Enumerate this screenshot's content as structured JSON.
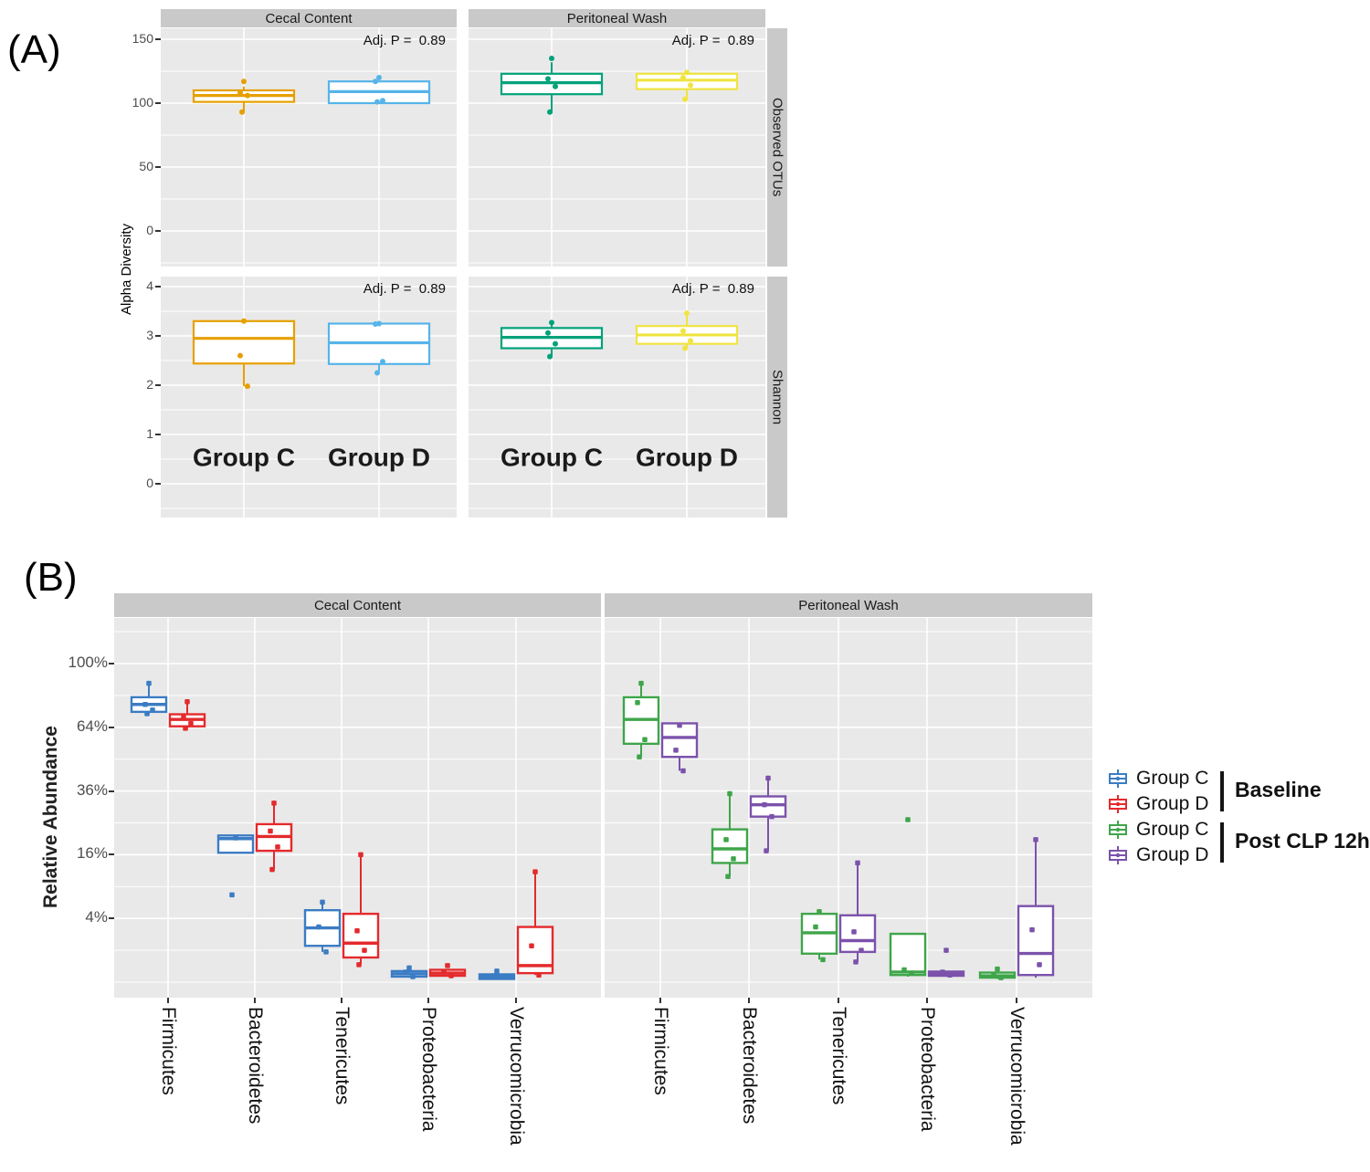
{
  "chart_data": {
    "type": "boxplot",
    "figure": {
      "panel_a_label": "(A)",
      "panel_b_label": "(B)"
    },
    "panel_a": {
      "ylabel": "Alpha Diversity",
      "facet_cols": [
        "Cecal Content",
        "Peritoneal Wash"
      ],
      "facet_rows": [
        "Observed OTUs",
        "Shannon"
      ],
      "annotation": "Adj. P =  0.89",
      "groups": [
        "Group C",
        "Group D"
      ],
      "rows": [
        {
          "name": "Observed OTUs",
          "yticks": [
            150,
            100,
            50,
            0
          ],
          "ylim": [
            -28,
            158
          ]
        },
        {
          "name": "Shannon",
          "yticks": [
            4,
            3,
            2,
            1,
            0
          ],
          "ylim": [
            -0.7,
            4.2
          ]
        }
      ],
      "cells": [
        {
          "row": 0,
          "col": 0,
          "boxes": [
            {
              "group": "Group C",
              "color": "#E69F00",
              "lo": 93,
              "q1": 101,
              "med": 106,
              "q3": 110,
              "hi": 113,
              "points": [
                117,
                108,
                106,
                93
              ]
            },
            {
              "group": "Group D",
              "color": "#56B4E9",
              "lo": 100,
              "q1": 100,
              "med": 109,
              "q3": 117,
              "hi": 117,
              "points": [
                120,
                117,
                102,
                101
              ]
            }
          ]
        },
        {
          "row": 0,
          "col": 1,
          "boxes": [
            {
              "group": "Group C",
              "color": "#00A27A",
              "lo": 92,
              "q1": 107,
              "med": 116,
              "q3": 123,
              "hi": 132,
              "points": [
                135,
                119,
                113,
                93
              ]
            },
            {
              "group": "Group D",
              "color": "#F0E442",
              "lo": 102,
              "q1": 111,
              "med": 118,
              "q3": 123,
              "hi": 123,
              "points": [
                124,
                120,
                114,
                103
              ]
            }
          ]
        },
        {
          "row": 1,
          "col": 0,
          "boxes": [
            {
              "group": "Group C",
              "color": "#E69F00",
              "lo": 1.98,
              "q1": 2.44,
              "med": 2.95,
              "q3": 3.3,
              "hi": 3.3,
              "points": [
                3.3,
                2.6,
                1.98
              ]
            },
            {
              "group": "Group D",
              "color": "#56B4E9",
              "lo": 2.28,
              "q1": 2.43,
              "med": 2.86,
              "q3": 3.25,
              "hi": 3.25,
              "points": [
                3.25,
                3.24,
                2.48,
                2.25
              ]
            }
          ]
        },
        {
          "row": 1,
          "col": 1,
          "boxes": [
            {
              "group": "Group C",
              "color": "#00A27A",
              "lo": 2.58,
              "q1": 2.75,
              "med": 2.97,
              "q3": 3.16,
              "hi": 3.27,
              "points": [
                3.27,
                3.06,
                2.84,
                2.58
              ]
            },
            {
              "group": "Group D",
              "color": "#F0E442",
              "lo": 2.73,
              "q1": 2.84,
              "med": 3.02,
              "q3": 3.2,
              "hi": 3.46,
              "points": [
                3.46,
                3.1,
                2.9,
                2.75
              ]
            }
          ]
        }
      ]
    },
    "panel_b": {
      "ylabel": "Relative Abundance",
      "scale": "sqrt",
      "facet_cols": [
        "Cecal Content",
        "Peritoneal Wash"
      ],
      "yticks": [
        {
          "value": 100,
          "label": "100%"
        },
        {
          "value": 64,
          "label": "64%"
        },
        {
          "value": 36,
          "label": "36%"
        },
        {
          "value": 16,
          "label": "16%"
        },
        {
          "value": 4,
          "label": "4%"
        }
      ],
      "minor_gridlines": [
        121,
        81,
        49,
        25,
        9,
        1,
        0
      ],
      "categories": [
        "Firmicutes",
        "Bacteroidetes",
        "Tenericutes",
        "Proteobacteria",
        "Verrucomicrobia"
      ],
      "facets": [
        {
          "name": "Cecal Content",
          "series": [
            {
              "name": "Group C Baseline",
              "color": "#3B7CC4",
              "boxes": [
                {
                  "category": "Firmicutes",
                  "lo": 71,
                  "q1": 72,
                  "med": 76,
                  "q3": 80,
                  "hi": 88,
                  "points": [
                    88,
                    76,
                    73,
                    71
                  ]
                },
                {
                  "category": "Bacteroidetes",
                  "lo": 16.5,
                  "q1": 16.5,
                  "med": 20.3,
                  "q3": 21.2,
                  "hi": 21.2,
                  "points": [
                    20.5,
                    7.5
                  ]
                },
                {
                  "category": "Tenericutes",
                  "lo": 0.9,
                  "q1": 1.3,
                  "med": 2.9,
                  "q3": 5.1,
                  "hi": 6.3,
                  "points": [
                    6.3,
                    3.0,
                    0.9
                  ]
                },
                {
                  "category": "Proteobacteria",
                  "lo": 0.02,
                  "q1": 0.03,
                  "med": 0.07,
                  "q3": 0.12,
                  "hi": 0.2,
                  "points": [
                    0.2,
                    0.1,
                    0.03
                  ]
                },
                {
                  "category": "Verrucomicrobia",
                  "lo": 0.01,
                  "q1": 0.01,
                  "med": 0.03,
                  "q3": 0.06,
                  "hi": 0.06,
                  "points": [
                    0.12,
                    0.04
                  ]
                }
              ]
            },
            {
              "name": "Group D Baseline",
              "color": "#E42A2C",
              "boxes": [
                {
                  "category": "Firmicutes",
                  "lo": 63.5,
                  "q1": 64.5,
                  "med": 68,
                  "q3": 70.7,
                  "hi": 77.5,
                  "points": [
                    77.5,
                    69,
                    66,
                    63.5
                  ]
                },
                {
                  "category": "Bacteroidetes",
                  "lo": 12.5,
                  "q1": 17,
                  "med": 20.9,
                  "q3": 24.6,
                  "hi": 31.6,
                  "points": [
                    31.6,
                    22.5,
                    18,
                    12.5
                  ]
                },
                {
                  "category": "Tenericutes",
                  "lo": 0.3,
                  "q1": 0.6,
                  "med": 1.5,
                  "q3": 4.6,
                  "hi": 16,
                  "points": [
                    16,
                    2.6,
                    1.0,
                    0.3
                  ]
                },
                {
                  "category": "Proteobacteria",
                  "lo": 0.04,
                  "q1": 0.04,
                  "med": 0.08,
                  "q3": 0.15,
                  "hi": 0.15,
                  "points": [
                    0.27,
                    0.1,
                    0.04
                  ]
                },
                {
                  "category": "Verrucomicrobia",
                  "lo": 0.05,
                  "q1": 0.08,
                  "med": 0.27,
                  "q3": 3.0,
                  "hi": 12,
                  "points": [
                    12,
                    1.3,
                    0.05
                  ]
                }
              ]
            }
          ]
        },
        {
          "name": "Peritoneal Wash",
          "series": [
            {
              "name": "Group C Post CLP 12h",
              "color": "#3FA54A",
              "boxes": [
                {
                  "category": "Firmicutes",
                  "lo": 50,
                  "q1": 56,
                  "med": 68,
                  "q3": 80,
                  "hi": 88,
                  "points": [
                    88,
                    77,
                    58,
                    50
                  ]
                },
                {
                  "category": "Bacteroidetes",
                  "lo": 11,
                  "q1": 14,
                  "med": 17.5,
                  "q3": 23,
                  "hi": 35,
                  "points": [
                    35,
                    20,
                    15,
                    11
                  ]
                },
                {
                  "category": "Tenericutes",
                  "lo": 0.5,
                  "q1": 0.8,
                  "med": 2.4,
                  "q3": 4.6,
                  "hi": 5.0,
                  "points": [
                    4.9,
                    3.0,
                    0.5
                  ]
                },
                {
                  "category": "Proteobacteria",
                  "lo": 0.03,
                  "q1": 0.05,
                  "med": 0.1,
                  "q3": 2.3,
                  "hi": 2.3,
                  "points": [
                    26,
                    0.15,
                    0.08
                  ]
                },
                {
                  "category": "Verrucomicrobia",
                  "lo": 0.01,
                  "q1": 0.02,
                  "med": 0.04,
                  "q3": 0.09,
                  "hi": 0.09,
                  "points": [
                    0.17,
                    0.06,
                    0.02
                  ]
                }
              ]
            },
            {
              "name": "Group D Post CLP 12h",
              "color": "#7B52AB",
              "boxes": [
                {
                  "category": "Firmicutes",
                  "lo": 44,
                  "q1": 50,
                  "med": 59,
                  "q3": 66,
                  "hi": 66,
                  "points": [
                    65,
                    53,
                    44
                  ]
                },
                {
                  "category": "Bacteroidetes",
                  "lo": 17,
                  "q1": 27,
                  "med": 31,
                  "q3": 34,
                  "hi": 41,
                  "points": [
                    41,
                    31,
                    27,
                    17
                  ]
                },
                {
                  "category": "Tenericutes",
                  "lo": 0.4,
                  "q1": 0.9,
                  "med": 1.7,
                  "q3": 4.4,
                  "hi": 14,
                  "points": [
                    14,
                    2.5,
                    1.0,
                    0.4
                  ]
                },
                {
                  "category": "Proteobacteria",
                  "lo": 0.03,
                  "q1": 0.04,
                  "med": 0.07,
                  "q3": 0.11,
                  "hi": 0.11,
                  "points": [
                    1.0,
                    0.1,
                    0.05
                  ]
                },
                {
                  "category": "Verrucomicrobia",
                  "lo": 0.02,
                  "q1": 0.05,
                  "med": 0.81,
                  "q3": 5.7,
                  "hi": 20,
                  "points": [
                    20,
                    2.7,
                    0.3
                  ]
                }
              ]
            }
          ]
        }
      ]
    },
    "legend": {
      "entries": [
        {
          "label": "Group C",
          "color": "#3B7CC4"
        },
        {
          "label": "Group D",
          "color": "#E42A2C"
        },
        {
          "label": "Group C",
          "color": "#3FA54A"
        },
        {
          "label": "Group D",
          "color": "#7B52AB"
        }
      ],
      "brackets": [
        {
          "label": "Baseline"
        },
        {
          "label": "Post CLP 12h"
        }
      ]
    },
    "style": {
      "panel_bg": "#E9E9E9",
      "strip_bg": "#C9C9C9",
      "grid_color": "#FFFFFF",
      "tick_text": "#4D4D4D"
    }
  }
}
